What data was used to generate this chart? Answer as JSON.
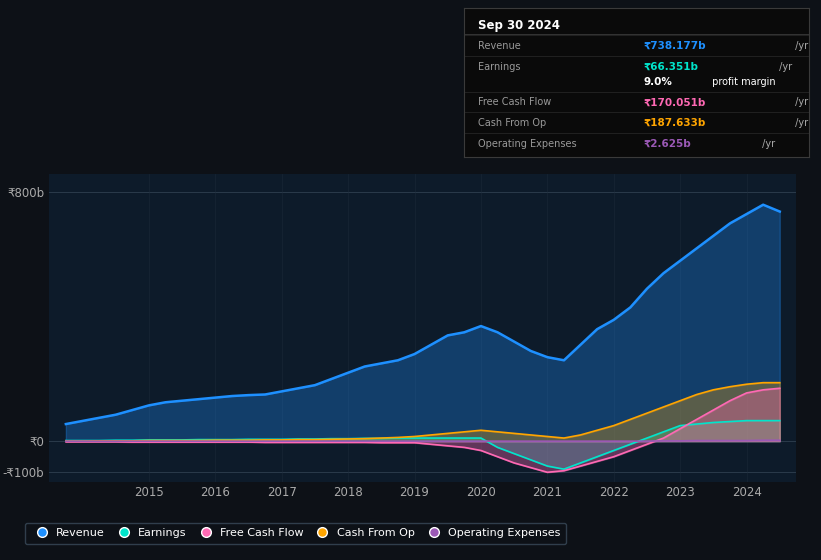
{
  "bg_color": "#0d1117",
  "plot_bg_color": "#0d1b2a",
  "years": [
    2013.75,
    2014.0,
    2014.25,
    2014.5,
    2014.75,
    2015.0,
    2015.25,
    2015.5,
    2015.75,
    2016.0,
    2016.25,
    2016.5,
    2016.75,
    2017.0,
    2017.25,
    2017.5,
    2017.75,
    2018.0,
    2018.25,
    2018.5,
    2018.75,
    2019.0,
    2019.25,
    2019.5,
    2019.75,
    2020.0,
    2020.25,
    2020.5,
    2020.75,
    2021.0,
    2021.25,
    2021.5,
    2021.75,
    2022.0,
    2022.25,
    2022.5,
    2022.75,
    2023.0,
    2023.25,
    2023.5,
    2023.75,
    2024.0,
    2024.25,
    2024.5
  ],
  "revenue": [
    55,
    65,
    75,
    85,
    100,
    115,
    125,
    130,
    135,
    140,
    145,
    148,
    150,
    160,
    170,
    180,
    200,
    220,
    240,
    250,
    260,
    280,
    310,
    340,
    350,
    370,
    350,
    320,
    290,
    270,
    260,
    310,
    360,
    390,
    430,
    490,
    540,
    580,
    620,
    660,
    700,
    730,
    760,
    738
  ],
  "earnings": [
    2,
    2,
    2,
    3,
    3,
    4,
    4,
    4,
    5,
    5,
    5,
    6,
    6,
    6,
    7,
    7,
    8,
    8,
    9,
    9,
    10,
    10,
    10,
    10,
    10,
    10,
    -20,
    -40,
    -60,
    -80,
    -90,
    -70,
    -50,
    -30,
    -10,
    10,
    30,
    50,
    55,
    60,
    63,
    66,
    66,
    66
  ],
  "free_cash_flow": [
    -2,
    -2,
    -2,
    -2,
    -3,
    -3,
    -3,
    -3,
    -3,
    -3,
    -3,
    -3,
    -4,
    -4,
    -4,
    -4,
    -4,
    -4,
    -4,
    -5,
    -5,
    -5,
    -10,
    -15,
    -20,
    -30,
    -50,
    -70,
    -85,
    -100,
    -95,
    -80,
    -65,
    -50,
    -30,
    -10,
    10,
    40,
    70,
    100,
    130,
    155,
    165,
    170
  ],
  "cash_from_op": [
    0,
    0,
    1,
    1,
    1,
    2,
    2,
    2,
    2,
    3,
    3,
    3,
    4,
    4,
    5,
    5,
    6,
    7,
    8,
    10,
    12,
    15,
    20,
    25,
    30,
    35,
    30,
    25,
    20,
    15,
    10,
    20,
    35,
    50,
    70,
    90,
    110,
    130,
    150,
    165,
    175,
    183,
    188,
    188
  ],
  "operating_expenses": [
    0,
    0,
    0,
    0,
    0,
    0,
    0,
    0,
    0,
    0,
    0,
    0,
    0,
    0,
    0,
    0,
    0,
    0,
    0,
    0,
    0,
    0,
    0,
    0,
    0,
    0,
    0,
    0,
    0,
    0,
    0,
    0,
    0,
    0,
    0,
    0,
    1,
    1,
    2,
    2,
    2,
    2,
    3,
    3
  ],
  "ylim": [
    -130,
    860
  ],
  "yticks": [
    -100,
    0,
    800
  ],
  "ytick_labels": [
    "-₹100b",
    "₹0",
    "₹800b"
  ],
  "xticks": [
    2015,
    2016,
    2017,
    2018,
    2019,
    2020,
    2021,
    2022,
    2023,
    2024
  ],
  "colors": {
    "revenue": "#1e90ff",
    "earnings": "#00e5cc",
    "free_cash_flow": "#ff69b4",
    "cash_from_op": "#ffa500",
    "operating_expenses": "#9b59b6"
  },
  "title_box": {
    "date": "Sep 30 2024",
    "rows": [
      {
        "label": "Revenue",
        "value": "₹738.177b",
        "suffix": " /yr",
        "value_color": "#1e90ff"
      },
      {
        "label": "Earnings",
        "value": "₹66.351b",
        "suffix": " /yr",
        "value_color": "#00e5cc"
      },
      {
        "label": "",
        "value": "9.0%",
        "suffix": " profit margin",
        "value_color": "#ffffff"
      },
      {
        "label": "Free Cash Flow",
        "value": "₹170.051b",
        "suffix": " /yr",
        "value_color": "#ff69b4"
      },
      {
        "label": "Cash From Op",
        "value": "₹187.633b",
        "suffix": " /yr",
        "value_color": "#ffa500"
      },
      {
        "label": "Operating Expenses",
        "value": "₹2.625b",
        "suffix": " /yr",
        "value_color": "#9b59b6"
      }
    ]
  },
  "legend": [
    {
      "label": "Revenue",
      "color": "#1e90ff"
    },
    {
      "label": "Earnings",
      "color": "#00e5cc"
    },
    {
      "label": "Free Cash Flow",
      "color": "#ff69b4"
    },
    {
      "label": "Cash From Op",
      "color": "#ffa500"
    },
    {
      "label": "Operating Expenses",
      "color": "#9b59b6"
    }
  ]
}
